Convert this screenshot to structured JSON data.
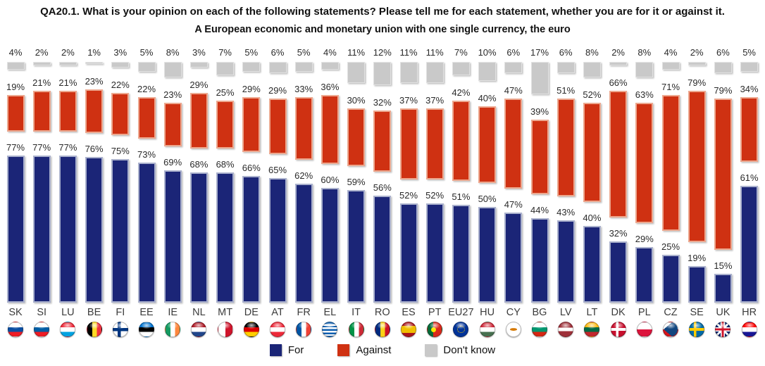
{
  "title": "QA20.1. What is your opinion on each of the following statements? Please tell me for each statement, whether you are for it or against it.",
  "subtitle": "A European economic and monetary union with one single currency, the euro",
  "legend": [
    {
      "label": "For",
      "color": "#1b2577"
    },
    {
      "label": "Against",
      "color": "#cf3112"
    },
    {
      "label": "Don't know",
      "color": "#c9c9c9"
    }
  ],
  "chart_data": {
    "type": "bar",
    "stacked": true,
    "title": "QA20.1. What is your opinion on each of the following statements? Please tell me for each statement, whether you are for it or against it.",
    "subtitle": "A European economic and monetary union with one single currency, the euro",
    "unit": "%",
    "value_suffix": "%",
    "ylim": [
      0,
      100
    ],
    "grid": false,
    "legend_position": "bottom",
    "categories": [
      "SK",
      "SI",
      "LU",
      "BE",
      "FI",
      "EE",
      "IE",
      "NL",
      "MT",
      "DE",
      "AT",
      "FR",
      "EL",
      "IT",
      "RO",
      "ES",
      "PT",
      "EU27",
      "HU",
      "CY",
      "BG",
      "LV",
      "LT",
      "DK",
      "PL",
      "CZ",
      "SE",
      "UK",
      "HR"
    ],
    "series": [
      {
        "name": "For",
        "color": "#1b2577",
        "values": [
          77,
          77,
          77,
          76,
          75,
          73,
          69,
          68,
          68,
          66,
          65,
          62,
          60,
          59,
          56,
          52,
          52,
          51,
          50,
          47,
          44,
          43,
          40,
          32,
          29,
          25,
          19,
          15,
          61
        ]
      },
      {
        "name": "Against",
        "color": "#cf3112",
        "values": [
          19,
          21,
          21,
          23,
          22,
          22,
          23,
          29,
          25,
          29,
          29,
          33,
          36,
          30,
          32,
          37,
          37,
          42,
          40,
          47,
          39,
          51,
          52,
          66,
          63,
          71,
          79,
          79,
          34
        ]
      },
      {
        "name": "Don't know",
        "color": "#c9c9c9",
        "values": [
          4,
          2,
          2,
          1,
          3,
          5,
          8,
          3,
          7,
          5,
          6,
          5,
          4,
          11,
          12,
          11,
          11,
          7,
          10,
          6,
          17,
          6,
          8,
          2,
          8,
          4,
          2,
          6,
          5
        ]
      }
    ]
  }
}
